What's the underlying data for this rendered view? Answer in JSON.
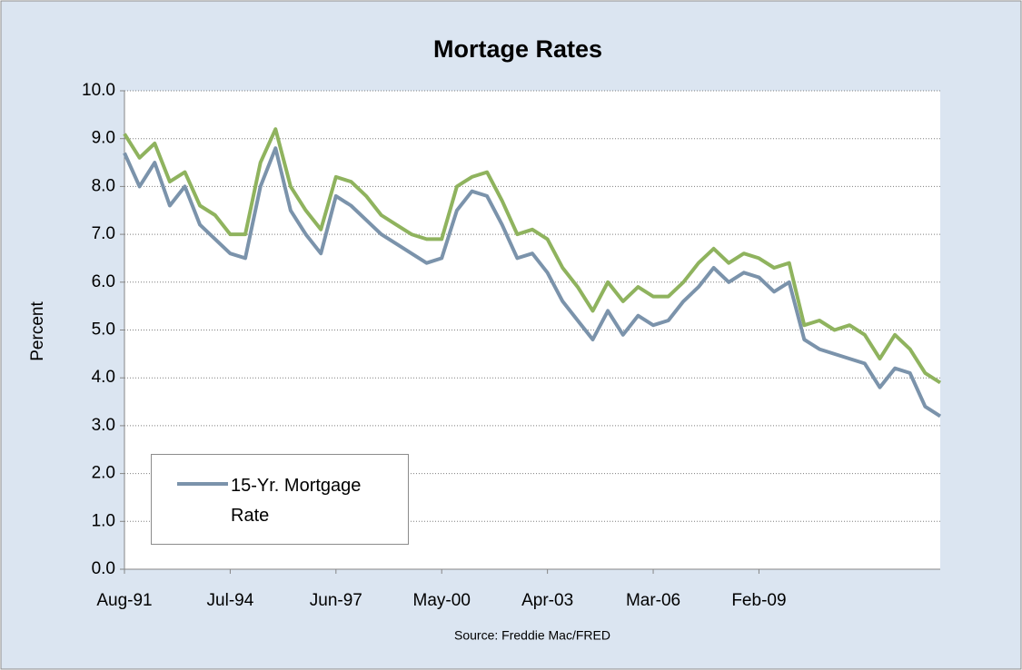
{
  "chart_data": {
    "type": "line",
    "title": "Mortage Rates",
    "y_label": "Percent",
    "source": "Source: Freddie Mac/FRED",
    "categories": [
      "Aug-91",
      null,
      null,
      null,
      null,
      null,
      null,
      "Jul-94",
      null,
      null,
      null,
      null,
      null,
      null,
      "Jun-97",
      null,
      null,
      null,
      null,
      null,
      null,
      "May-00",
      null,
      null,
      null,
      null,
      null,
      null,
      "Apr-03",
      null,
      null,
      null,
      null,
      null,
      null,
      "Mar-06",
      null,
      null,
      null,
      null,
      null,
      null,
      "Feb-09",
      null,
      null,
      null,
      null,
      null,
      null,
      null,
      null,
      null,
      null,
      null,
      null
    ],
    "series": [
      {
        "name": "15-Yr. Mortgage Rate",
        "color": "#7b93ab",
        "values": [
          8.7,
          8.0,
          8.5,
          7.6,
          8.0,
          7.2,
          6.9,
          6.6,
          6.5,
          8.0,
          8.8,
          7.5,
          7.0,
          6.6,
          7.8,
          7.6,
          7.3,
          7.0,
          6.8,
          6.6,
          6.4,
          6.5,
          7.5,
          7.9,
          7.8,
          7.2,
          6.5,
          6.6,
          6.2,
          5.6,
          5.2,
          4.8,
          5.4,
          4.9,
          5.3,
          5.1,
          5.2,
          5.6,
          5.9,
          6.3,
          6.0,
          6.2,
          6.1,
          5.8,
          6.0,
          4.8,
          4.6,
          4.5,
          4.4,
          4.3,
          3.8,
          4.2,
          4.1,
          3.4,
          3.2
        ]
      },
      {
        "color": "#8fb35e",
        "values": [
          9.1,
          8.6,
          8.9,
          8.1,
          8.3,
          7.6,
          7.4,
          7.0,
          7.0,
          8.5,
          9.2,
          8.0,
          7.5,
          7.1,
          8.2,
          8.1,
          7.8,
          7.4,
          7.2,
          7.0,
          6.9,
          6.9,
          8.0,
          8.2,
          8.3,
          7.7,
          7.0,
          7.1,
          6.9,
          6.3,
          5.9,
          5.4,
          6.0,
          5.6,
          5.9,
          5.7,
          5.7,
          6.0,
          6.4,
          6.7,
          6.4,
          6.6,
          6.5,
          6.3,
          6.4,
          5.1,
          5.2,
          5.0,
          5.1,
          4.9,
          4.4,
          4.9,
          4.6,
          4.1,
          3.9
        ]
      }
    ],
    "ylim": [
      0,
      10
    ],
    "yticks": [
      {
        "value": 0,
        "label": "0.0"
      },
      {
        "value": 1,
        "label": "1.0"
      },
      {
        "value": 2,
        "label": "2.0"
      },
      {
        "value": 3,
        "label": "3.0"
      },
      {
        "value": 4,
        "label": "4.0"
      },
      {
        "value": 5,
        "label": "5.0"
      },
      {
        "value": 6,
        "label": "6.0"
      },
      {
        "value": 7,
        "label": "7.0"
      },
      {
        "value": 8,
        "label": "8.0"
      },
      {
        "value": 9,
        "label": "9.0"
      },
      {
        "value": 10,
        "label": "10.0"
      }
    ],
    "grid": true,
    "legend": "lower-left"
  }
}
